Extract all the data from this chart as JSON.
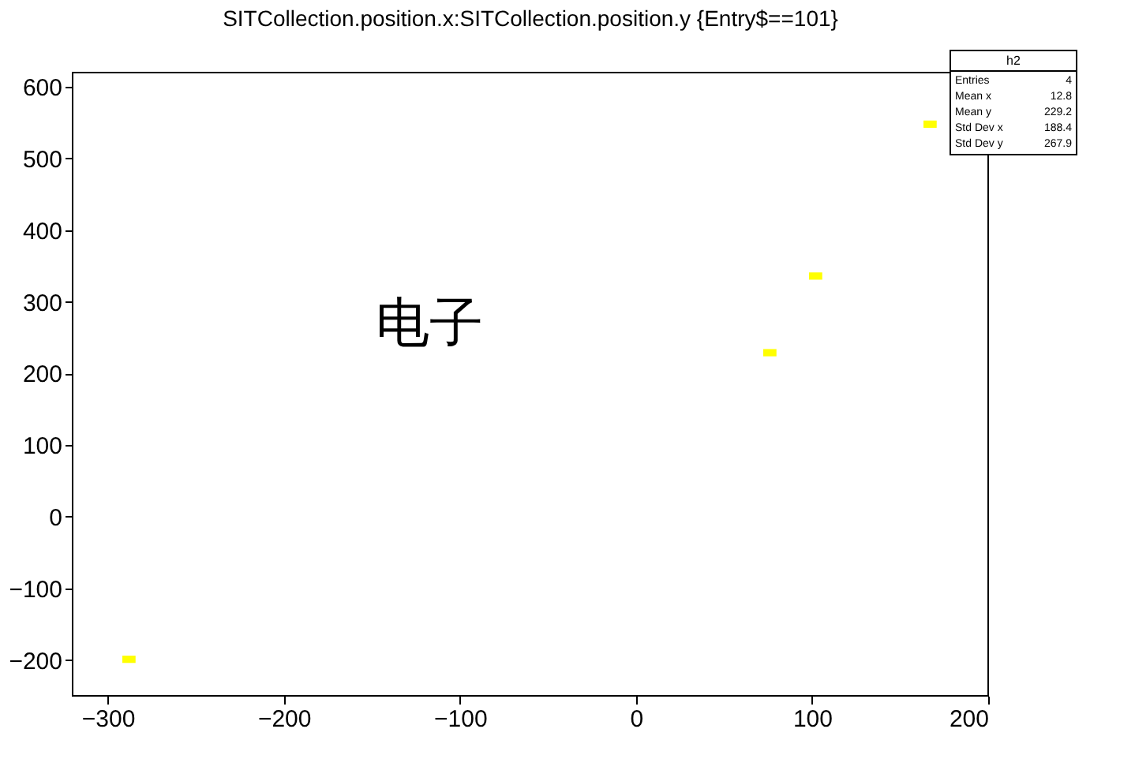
{
  "chart_data": {
    "type": "scatter",
    "title": "SITCollection.position.x:SITCollection.position.y {Entry$==101}",
    "x": [
      -288,
      76,
      102,
      167
    ],
    "series": [
      {
        "color": "#ffff00",
        "values": [
          -199,
          229,
          336,
          548
        ]
      }
    ],
    "xlim": [
      -320,
      200
    ],
    "xticks": [
      -300,
      -200,
      -100,
      0,
      100,
      200
    ],
    "ylim": [
      -250,
      620
    ],
    "yticks": [
      -200,
      -100,
      0,
      100,
      200,
      300,
      400,
      500,
      600
    ],
    "grid": false,
    "marker": "square",
    "annotations": [
      "电子",
      "h2",
      "Entries 4",
      "Mean x 12.8",
      "Mean y 229.2",
      "Std Dev x 188.4",
      "Std Dev y 267.9"
    ]
  }
}
